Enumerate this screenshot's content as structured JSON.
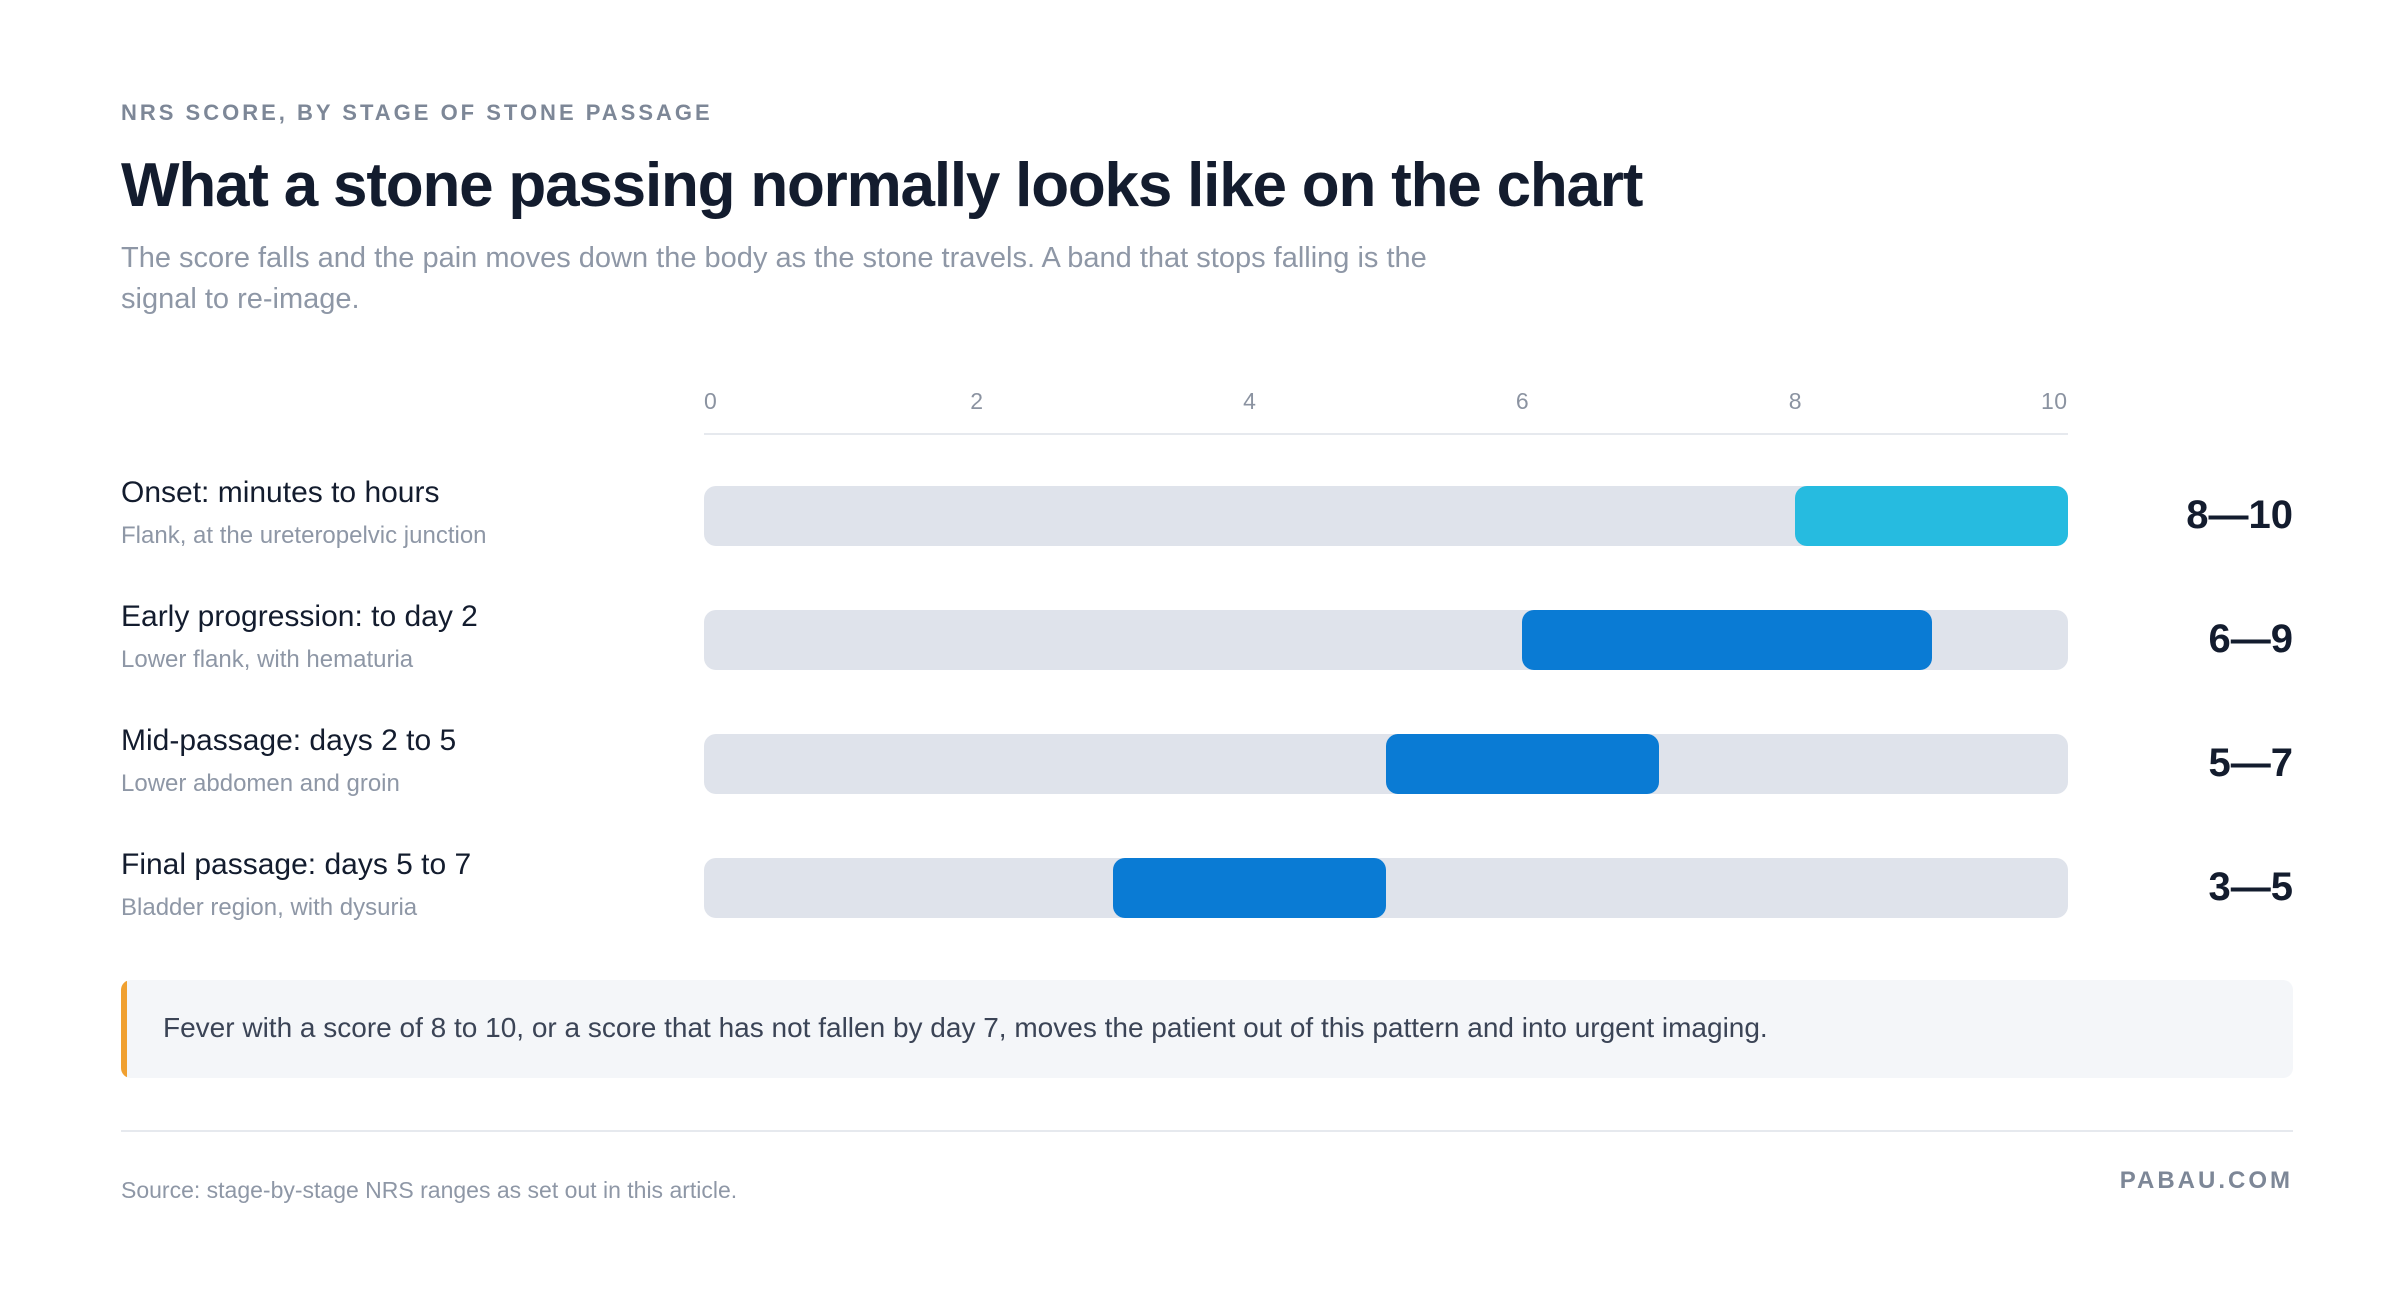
{
  "header": {
    "eyebrow": "NRS SCORE, BY STAGE OF STONE PASSAGE",
    "title": "What a stone passing normally looks like on the chart",
    "subtitle": "The score falls and the pain moves down the body as the stone travels. A band that stops falling is the signal to re-image."
  },
  "chart_data": {
    "type": "bar",
    "orientation": "horizontal-range",
    "xlim": [
      0,
      10
    ],
    "ticks": [
      "0",
      "2",
      "4",
      "6",
      "8",
      "10"
    ],
    "grid": false,
    "categories": [
      "Onset: minutes to hours",
      "Early progression: to day 2",
      "Mid-passage: days 2 to 5",
      "Final passage: days 5 to 7"
    ],
    "series": [
      {
        "ranges": [
          [
            8,
            10
          ],
          [
            6,
            9
          ],
          [
            5,
            7
          ],
          [
            3,
            5
          ]
        ]
      }
    ],
    "rows": [
      {
        "label": "Onset: minutes to hours",
        "sublabel": "Flank, at the ureteropelvic junction",
        "low": 8,
        "high": 10,
        "range_label": "8—10",
        "color": "#26bbe0"
      },
      {
        "label": "Early progression: to day 2",
        "sublabel": "Lower flank, with hematuria",
        "low": 6,
        "high": 9,
        "range_label": "6—9",
        "color": "#0a7bd4"
      },
      {
        "label": "Mid-passage: days 2 to 5",
        "sublabel": "Lower abdomen and groin",
        "low": 5,
        "high": 7,
        "range_label": "5—7",
        "color": "#0a7bd4"
      },
      {
        "label": "Final passage: days 5 to 7",
        "sublabel": "Bladder region, with dysuria",
        "low": 3,
        "high": 5,
        "range_label": "3—5",
        "color": "#0a7bd4"
      }
    ],
    "track_color": "#dfe3eb"
  },
  "callout": {
    "text": "Fever with a score of 8 to 10, or a score that has not fallen by day 7, moves the patient out of this pattern and into urgent imaging.",
    "accent_color": "#f0a030"
  },
  "footer": {
    "source": "Source: stage-by-stage NRS ranges as set out in this article.",
    "brand": "PABAU.COM"
  }
}
